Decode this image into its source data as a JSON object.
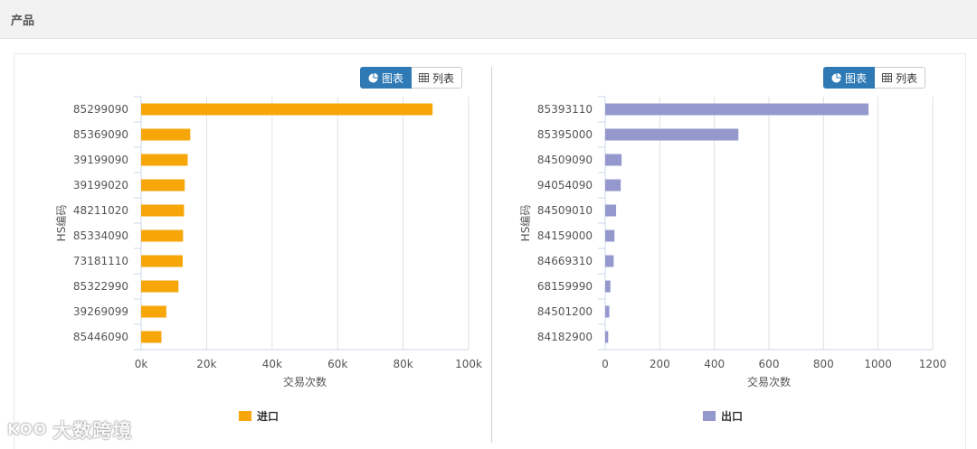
{
  "header": {
    "title": "产品"
  },
  "toggle": {
    "chart_label": "图表",
    "table_label": "列表"
  },
  "watermark": {
    "logo_text": "KOO",
    "text": "大数跨境"
  },
  "chart_data": [
    {
      "type": "bar",
      "orientation": "horizontal",
      "categories": [
        "85299090",
        "85369090",
        "39199090",
        "39199020",
        "48211020",
        "85334090",
        "73181110",
        "85322990",
        "39269099",
        "85446090"
      ],
      "series": [
        {
          "name": "进口",
          "values": [
            89000,
            15000,
            14200,
            13300,
            13100,
            12800,
            12700,
            11400,
            7700,
            6200
          ]
        }
      ],
      "xlabel": "交易次数",
      "ylabel": "HS编码",
      "xlim": [
        0,
        100000
      ],
      "xticks": [
        "0k",
        "20k",
        "40k",
        "60k",
        "80k",
        "100k"
      ],
      "color": "#f6a609",
      "grid": true,
      "legend": "bottom-center"
    },
    {
      "type": "bar",
      "orientation": "horizontal",
      "categories": [
        "85393110",
        "85395000",
        "84509090",
        "94054090",
        "84509010",
        "84159000",
        "84669310",
        "68159990",
        "84501200",
        "84182900"
      ],
      "series": [
        {
          "name": "出口",
          "values": [
            965,
            488,
            60,
            57,
            40,
            34,
            31,
            19,
            15,
            11
          ]
        }
      ],
      "xlabel": "交易次数",
      "ylabel": "HS编码",
      "xlim": [
        0,
        1200
      ],
      "xticks": [
        "0",
        "200",
        "400",
        "600",
        "800",
        "1000",
        "1200"
      ],
      "color": "#9498cd",
      "grid": true,
      "legend": "bottom-center"
    }
  ]
}
